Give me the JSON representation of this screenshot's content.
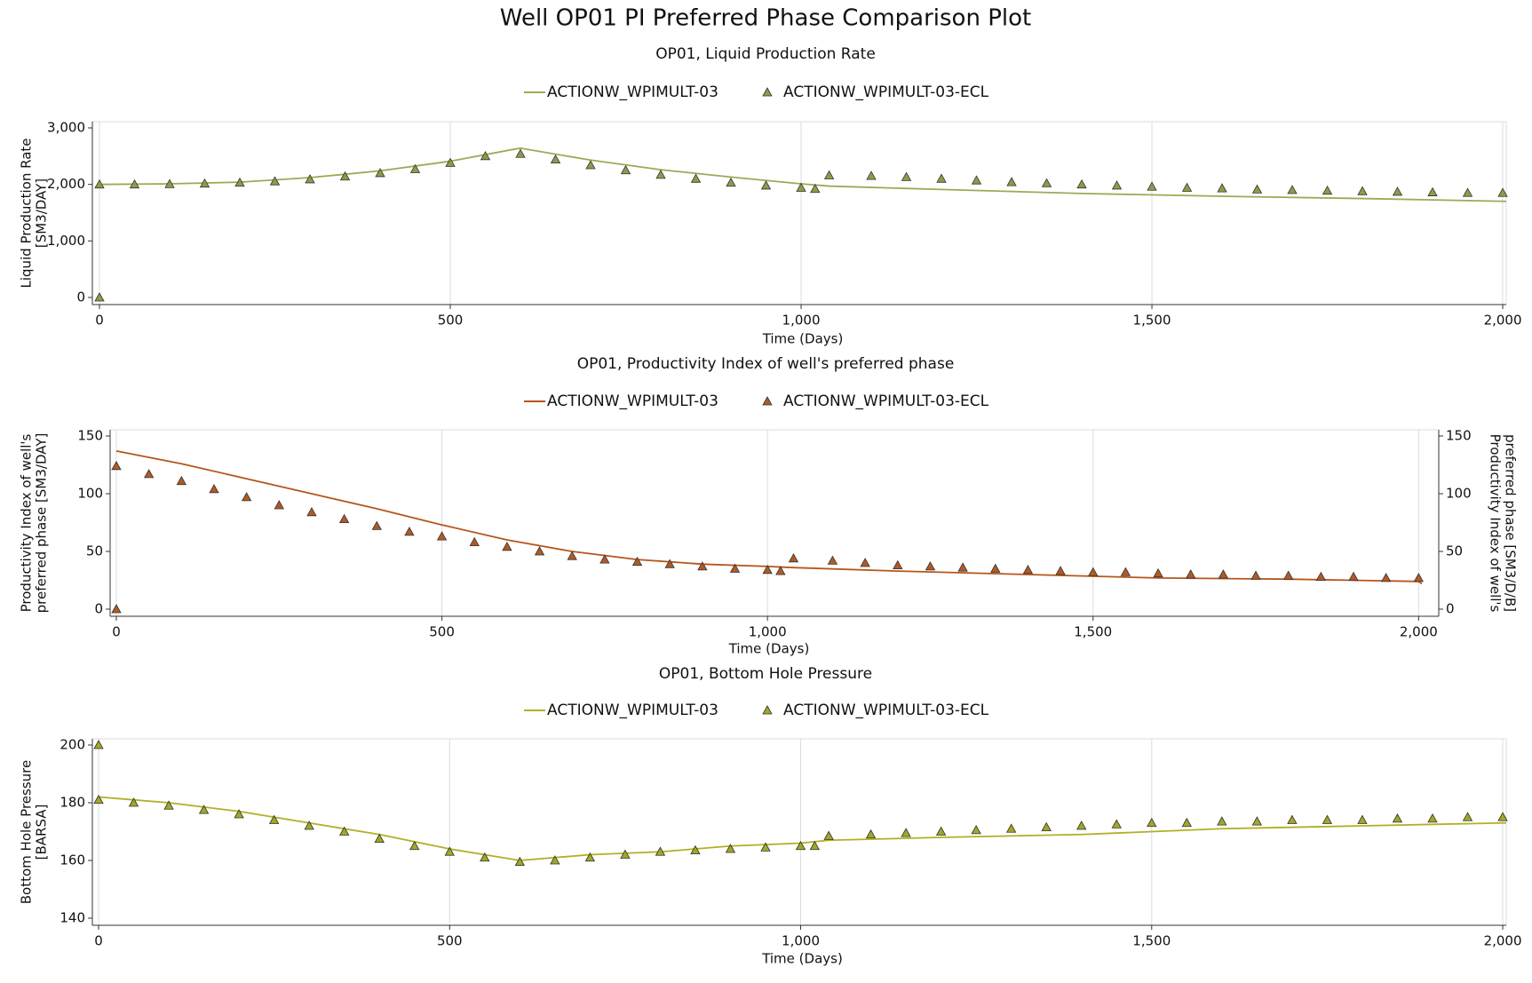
{
  "title": "Well OP01 PI Preferred Phase Comparison Plot",
  "chart_data": [
    {
      "type": "line",
      "title": "OP01, Liquid Production Rate",
      "xlabel": "Time (Days)",
      "ylabel": [
        "Liquid Production Rate",
        "[SM3/DAY]"
      ],
      "xlim": [
        0,
        2005
      ],
      "xticks": [
        0,
        500,
        {
          "value": 1000,
          "label": "1,000"
        },
        {
          "value": 1500,
          "label": "1,500"
        },
        {
          "value": 2000,
          "label": "2,000"
        }
      ],
      "ylim": [
        0,
        3000
      ],
      "yticks": [
        0,
        {
          "value": 1000,
          "label": "1,000"
        },
        {
          "value": 2000,
          "label": "2,000"
        },
        {
          "value": 3000,
          "label": "3,000"
        }
      ],
      "grid": "x",
      "series": [
        {
          "name": "ACTIONW_WPIMULT-03",
          "color": "#9aab55",
          "style": "line",
          "x": [
            0,
            100,
            200,
            300,
            400,
            500,
            590,
            600,
            700,
            800,
            900,
            1000,
            1040,
            1200,
            1400,
            1600,
            1800,
            2005
          ],
          "values": [
            2000,
            2010,
            2040,
            2120,
            2240,
            2410,
            2620,
            2640,
            2430,
            2260,
            2130,
            2010,
            1970,
            1910,
            1840,
            1790,
            1750,
            1700
          ]
        },
        {
          "name": "ACTIONW_WPIMULT-03-ECL",
          "color": "#8c9c48",
          "style": "marker",
          "x": [
            0,
            0,
            50,
            100,
            150,
            200,
            250,
            300,
            350,
            400,
            450,
            500,
            550,
            600,
            650,
            700,
            750,
            800,
            850,
            900,
            950,
            1000,
            1020,
            1040,
            1100,
            1150,
            1200,
            1250,
            1300,
            1350,
            1400,
            1450,
            1500,
            1550,
            1600,
            1650,
            1700,
            1750,
            1800,
            1850,
            1900,
            1950,
            2000
          ],
          "values": [
            0,
            2000,
            2000,
            2005,
            2015,
            2030,
            2055,
            2090,
            2140,
            2200,
            2270,
            2380,
            2500,
            2540,
            2440,
            2340,
            2250,
            2170,
            2100,
            2030,
            1980,
            1940,
            1920,
            2160,
            2150,
            2130,
            2100,
            2070,
            2040,
            2020,
            2000,
            1980,
            1960,
            1940,
            1930,
            1910,
            1900,
            1890,
            1880,
            1870,
            1860,
            1850,
            1850
          ]
        }
      ]
    },
    {
      "type": "line",
      "title": "OP01, Productivity Index of well's preferred phase",
      "xlabel": "Time (Days)",
      "ylabel": [
        "Productivity Index of well's",
        "preferred phase [SM3/DAY]"
      ],
      "y2label": [
        "Productivity Index of well's",
        "preferred phase [SM3/D/B]"
      ],
      "xlim": [
        0,
        2005
      ],
      "xticks": [
        0,
        500,
        {
          "value": 1000,
          "label": "1,000"
        },
        {
          "value": 1500,
          "label": "1,500"
        },
        {
          "value": 2000,
          "label": "2,000"
        }
      ],
      "ylim": [
        0,
        150
      ],
      "yticks": [
        0,
        50,
        100,
        150
      ],
      "y2lim": [
        0,
        150
      ],
      "y2ticks": [
        0,
        50,
        100,
        150
      ],
      "grid": "x",
      "series": [
        {
          "name": "ACTIONW_WPIMULT-03",
          "color": "#b5561b",
          "style": "line",
          "x": [
            0,
            100,
            200,
            300,
            400,
            500,
            600,
            700,
            800,
            900,
            1000,
            1040,
            1200,
            1400,
            1600,
            1800,
            2000,
            2005
          ],
          "values": [
            137,
            126,
            113,
            100,
            87,
            73,
            60,
            50,
            43,
            39,
            37,
            36,
            33,
            30,
            27,
            26,
            24,
            22
          ]
        },
        {
          "name": "ACTIONW_WPIMULT-03-ECL",
          "color": "#b05a25",
          "style": "marker",
          "x": [
            0,
            0,
            50,
            100,
            150,
            200,
            250,
            300,
            350,
            400,
            450,
            500,
            550,
            600,
            650,
            700,
            750,
            800,
            850,
            900,
            950,
            1000,
            1020,
            1040,
            1100,
            1150,
            1200,
            1250,
            1300,
            1350,
            1400,
            1450,
            1500,
            1550,
            1600,
            1650,
            1700,
            1750,
            1800,
            1850,
            1900,
            1950,
            2000
          ],
          "values": [
            0,
            124,
            117,
            111,
            104,
            97,
            90,
            84,
            78,
            72,
            67,
            63,
            58,
            54,
            50,
            46,
            43,
            41,
            39,
            37,
            35,
            34,
            33,
            44,
            42,
            40,
            38,
            37,
            36,
            35,
            34,
            33,
            32,
            32,
            31,
            30,
            30,
            29,
            29,
            28,
            28,
            27,
            27
          ]
        }
      ]
    },
    {
      "type": "line",
      "title": "OP01, Bottom Hole Pressure",
      "xlabel": "Time (Days)",
      "ylabel": [
        "Bottom Hole Pressure",
        "[BARSA]"
      ],
      "xlim": [
        0,
        2005
      ],
      "xticks": [
        0,
        500,
        {
          "value": 1000,
          "label": "1,000"
        },
        {
          "value": 1500,
          "label": "1,500"
        },
        {
          "value": 2000,
          "label": "2,000"
        }
      ],
      "ylim": [
        140,
        200
      ],
      "yticks": [
        140,
        160,
        180,
        200
      ],
      "grid": "x",
      "series": [
        {
          "name": "ACTIONW_WPIMULT-03",
          "color": "#b0b025",
          "style": "line",
          "x": [
            0,
            100,
            200,
            300,
            400,
            500,
            600,
            700,
            800,
            900,
            1000,
            1040,
            1200,
            1400,
            1600,
            1800,
            2000,
            2005
          ],
          "values": [
            182,
            180,
            177,
            173,
            169,
            164,
            160,
            162,
            163,
            165,
            166,
            167,
            168,
            169,
            171,
            172,
            173,
            173
          ]
        },
        {
          "name": "ACTIONW_WPIMULT-03-ECL",
          "color": "#a3a626",
          "style": "marker",
          "x": [
            0,
            0,
            50,
            100,
            150,
            200,
            250,
            300,
            350,
            400,
            450,
            500,
            550,
            600,
            650,
            700,
            750,
            800,
            850,
            900,
            950,
            1000,
            1020,
            1040,
            1100,
            1150,
            1200,
            1250,
            1300,
            1350,
            1400,
            1450,
            1500,
            1550,
            1600,
            1650,
            1700,
            1750,
            1800,
            1850,
            1900,
            1950,
            2000
          ],
          "values": [
            200,
            181,
            180,
            179,
            177.5,
            176,
            174,
            172,
            170,
            167.5,
            165,
            163,
            161,
            159.5,
            160,
            161,
            162,
            163,
            163.5,
            164,
            164.5,
            165,
            165,
            168.5,
            169,
            169.5,
            170,
            170.5,
            171,
            171.5,
            172,
            172.5,
            173,
            173,
            173.5,
            173.5,
            174,
            174,
            174,
            174.5,
            174.5,
            175,
            175
          ]
        }
      ]
    }
  ]
}
